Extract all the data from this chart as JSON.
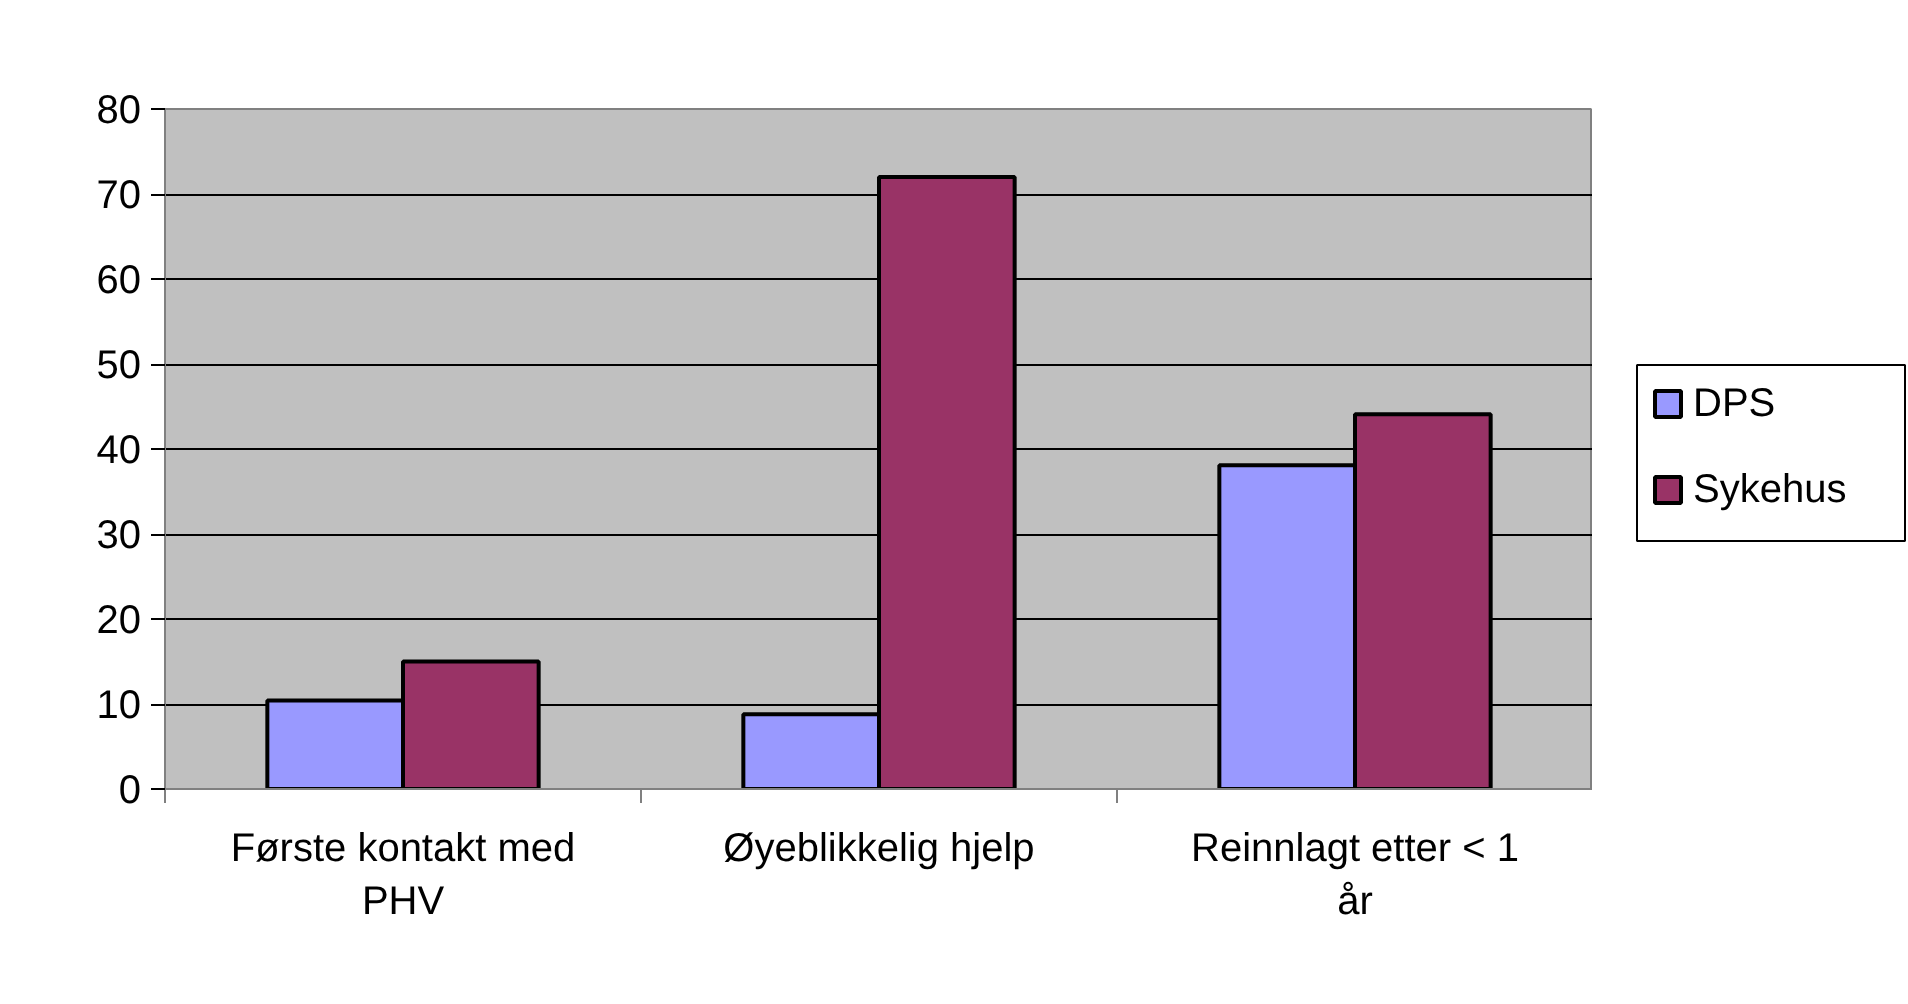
{
  "chart_data": {
    "type": "bar",
    "categories": [
      "Første kontakt med PHV",
      "Øyeblikkelig hjelp",
      "Reinnlagt etter < 1 år"
    ],
    "series": [
      {
        "name": "DPS",
        "color": "#9999ff",
        "values": [
          10.4,
          8.8,
          38.1
        ]
      },
      {
        "name": "Sykehus",
        "color": "#993366",
        "values": [
          15,
          72,
          44.1
        ]
      }
    ],
    "ylim": [
      0,
      80
    ],
    "yticks": [
      0,
      10,
      20,
      30,
      40,
      50,
      60,
      70,
      80
    ],
    "grid": "y",
    "legend": "right"
  }
}
